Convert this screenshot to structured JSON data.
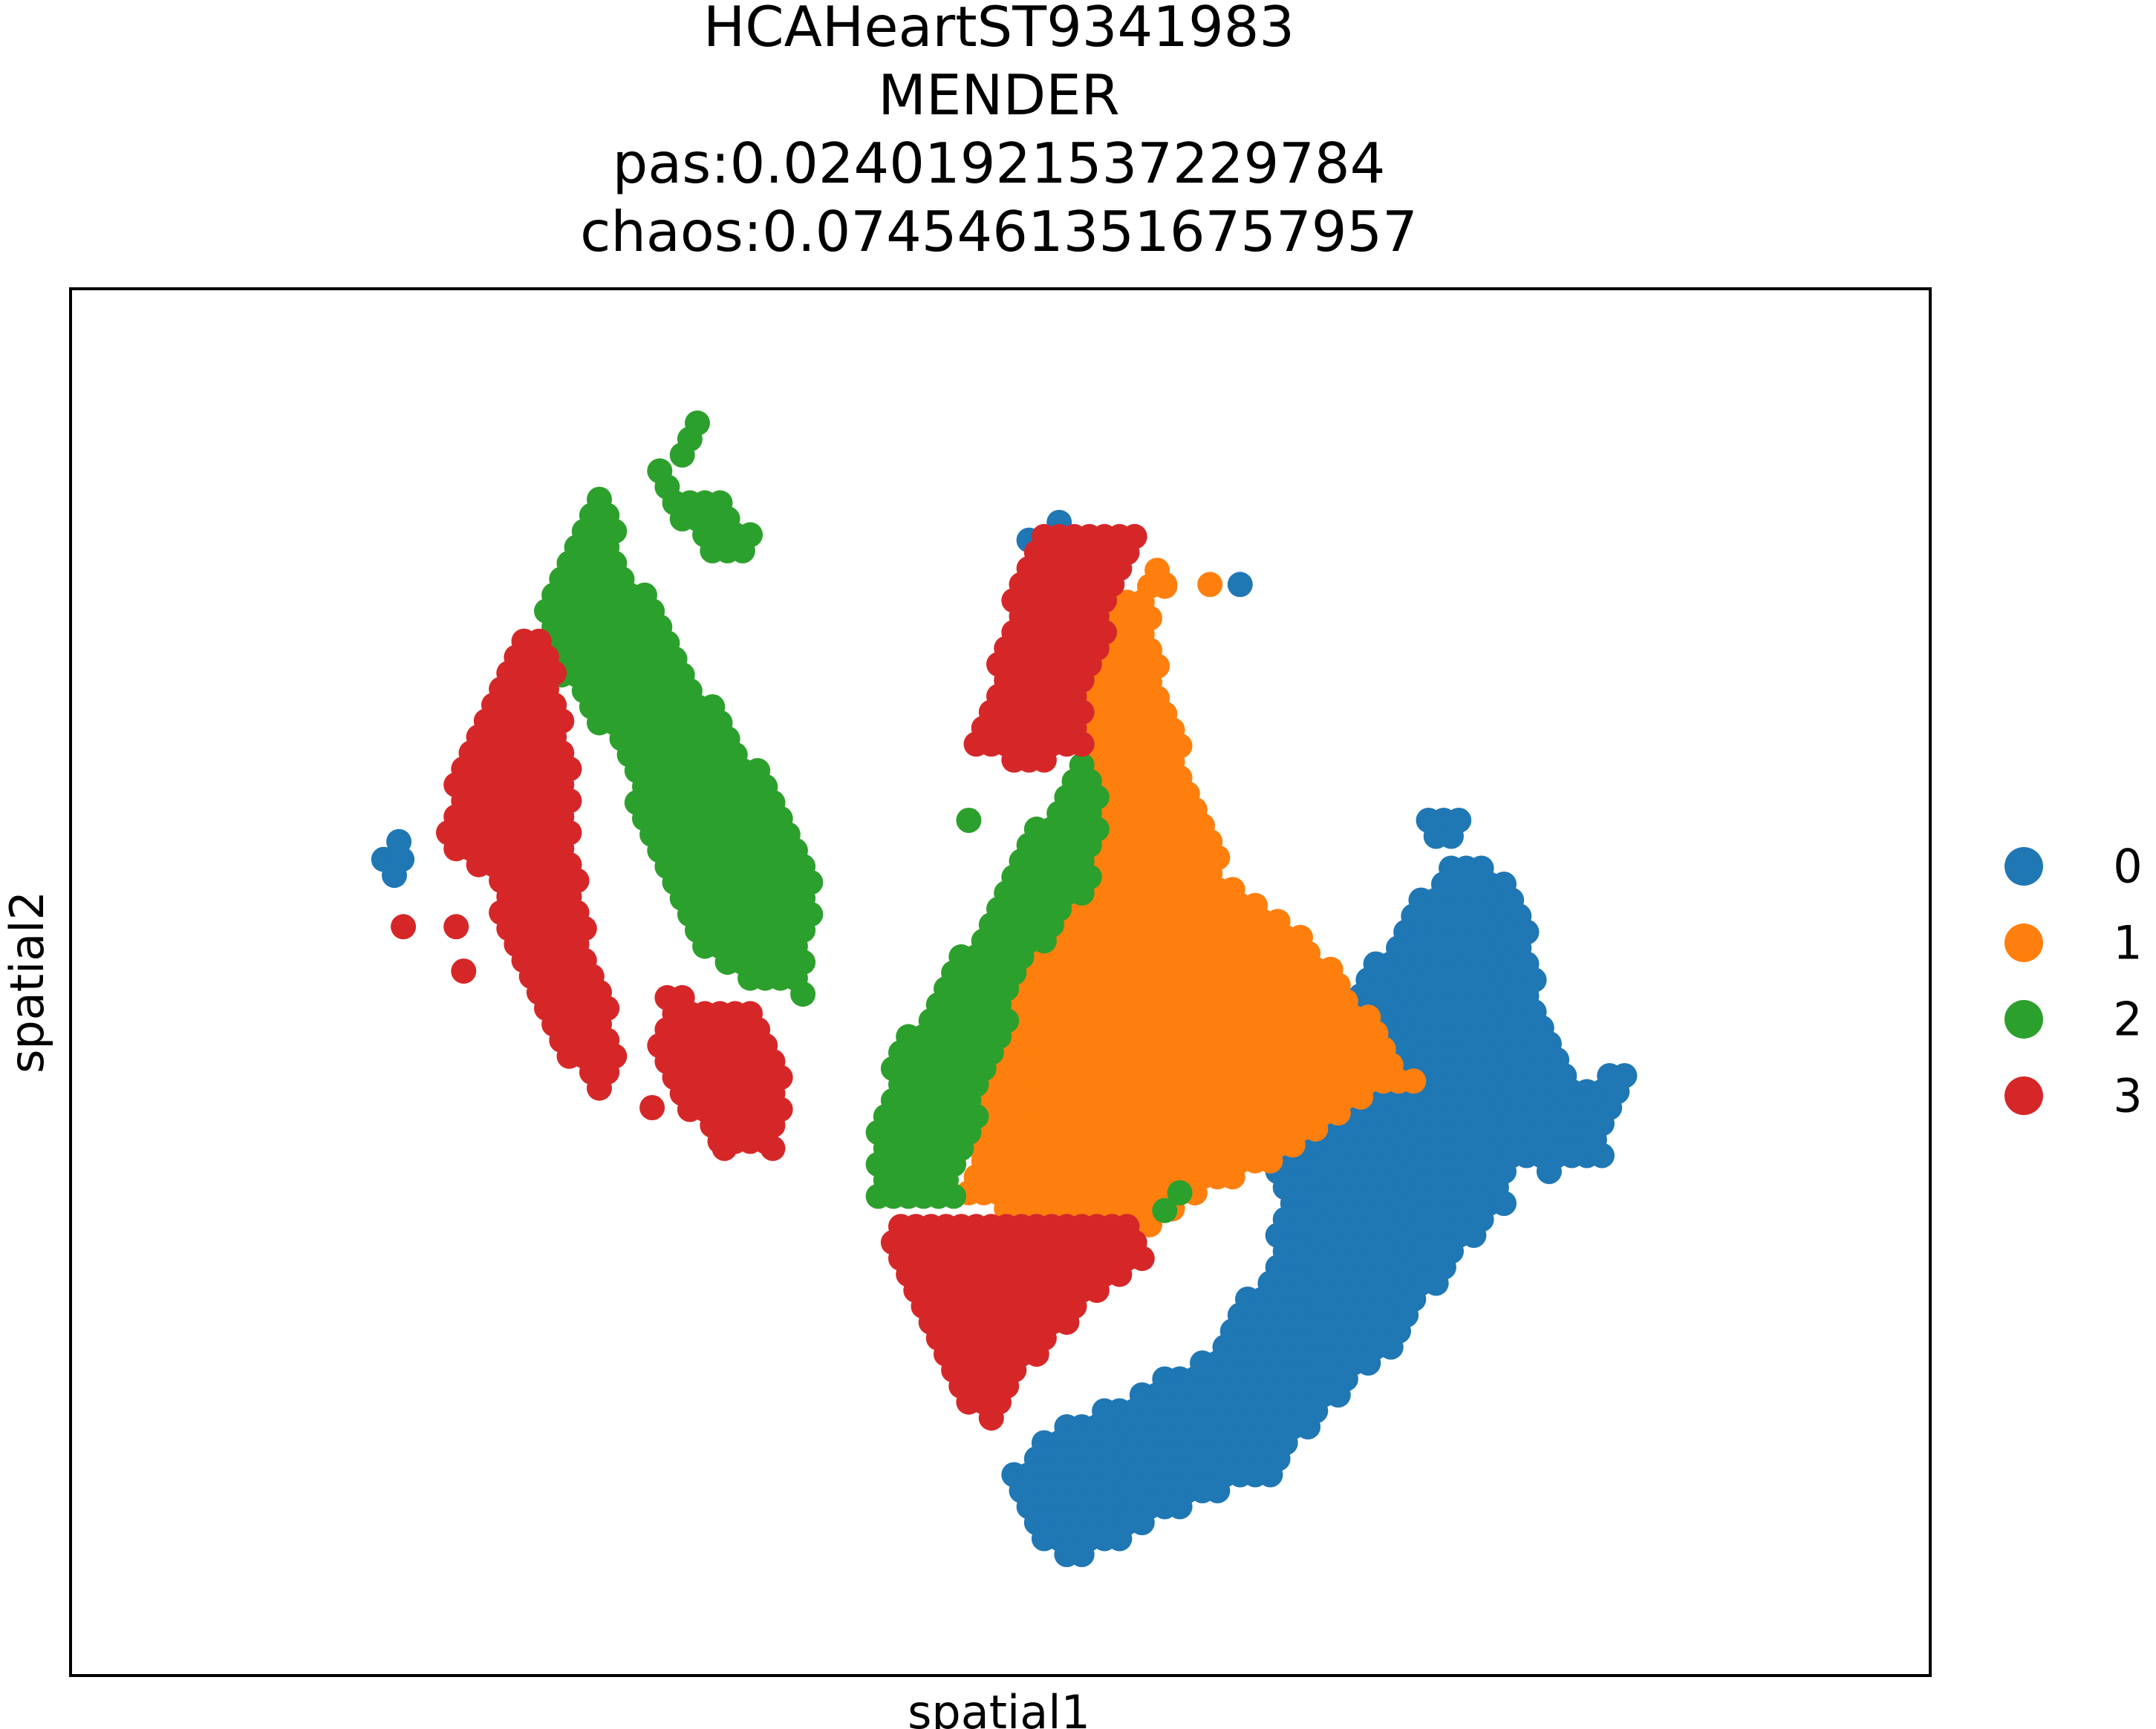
{
  "chart_data": {
    "type": "scatter",
    "title_lines": [
      "HCAHeartST9341983",
      "MENDER",
      "pas:0.02401921537229784",
      "chaos:0.07454613516757957"
    ],
    "xlabel": "spatial1",
    "ylabel": "spatial2",
    "ticks_shown": false,
    "grid": false,
    "legend_position": "right",
    "xlim": [
      0,
      1000
    ],
    "ylim": [
      0,
      720
    ],
    "y_inverted": true,
    "series": [
      {
        "name": "0",
        "color": "#1f77b4",
        "regions": [
          {
            "points": [
              [
                102,
                282
              ],
              [
                92,
                292
              ],
              [
                104,
                292
              ],
              [
                99,
                301
              ]
            ]
          },
          {
            "points": [
              [
                540,
                102
              ],
              [
                560,
                112
              ],
              [
                520,
                112
              ],
              [
                550,
                112
              ],
              [
                660,
                137
              ]
            ]
          },
          {
            "points": [
              [
                810,
                270
              ],
              [
                835,
                270
              ],
              [
                780,
                270
              ],
              [
                800,
                290
              ],
              [
                830,
                300
              ],
              [
                845,
                310
              ],
              [
                860,
                370
              ],
              [
                880,
                420
              ],
              [
                920,
                410
              ],
              [
                900,
                460
              ],
              [
                860,
                470
              ],
              [
                840,
                460
              ],
              [
                835,
                490
              ],
              [
                800,
                520
              ],
              [
                760,
                570
              ],
              [
                720,
                600
              ],
              [
                700,
                620
              ],
              [
                680,
                640
              ],
              [
                640,
                650
              ],
              [
                600,
                665
              ],
              [
                580,
                680
              ],
              [
                540,
                690
              ],
              [
                520,
                660
              ],
              [
                505,
                640
              ],
              [
                540,
                610
              ],
              [
                600,
                590
              ],
              [
                640,
                570
              ],
              [
                680,
                520
              ],
              [
                690,
                470
              ],
              [
                640,
                450
              ],
              [
                720,
                400
              ],
              [
                750,
                350
              ],
              [
                790,
                300
              ]
            ],
            "fill": true
          }
        ]
      },
      {
        "name": "1",
        "color": "#ff7f0e",
        "regions": [
          {
            "points": [
              [
                610,
                137
              ],
              [
                640,
                137
              ]
            ]
          },
          {
            "points": [
              [
                600,
                120
              ],
              [
                620,
                135
              ],
              [
                600,
                150
              ],
              [
                610,
                200
              ],
              [
                630,
                250
              ],
              [
                650,
                300
              ],
              [
                700,
                330
              ],
              [
                730,
                360
              ],
              [
                760,
                400
              ],
              [
                780,
                420
              ],
              [
                760,
                420
              ],
              [
                690,
                460
              ],
              [
                640,
                480
              ],
              [
                600,
                500
              ],
              [
                560,
                510
              ],
              [
                520,
                500
              ],
              [
                480,
                480
              ],
              [
                490,
                420
              ],
              [
                510,
                350
              ],
              [
                550,
                300
              ],
              [
                570,
                280
              ],
              [
                560,
                240
              ],
              [
                560,
                200
              ],
              [
                570,
                160
              ],
              [
                590,
                140
              ]
            ],
            "fill": true
          },
          {
            "points": [
              [
                520,
                311
              ]
            ]
          }
        ]
      },
      {
        "name": "2",
        "color": "#2ca02c",
        "regions": [
          {
            "points": [
              [
                315,
                10
              ],
              [
                300,
                50
              ],
              [
                280,
                80
              ],
              [
                320,
                90
              ],
              [
                340,
                110
              ],
              [
                320,
                130
              ],
              [
                300,
                110
              ],
              [
                270,
                80
              ]
            ],
            "fill": true
          },
          {
            "points": [
              [
                240,
                80
              ],
              [
                220,
                100
              ],
              [
                200,
                140
              ],
              [
                200,
                180
              ],
              [
                240,
                220
              ],
              [
                260,
                260
              ],
              [
                280,
                300
              ],
              [
                300,
                340
              ],
              [
                330,
                360
              ],
              [
                370,
                370
              ],
              [
                380,
                300
              ],
              [
                340,
                240
              ],
              [
                290,
                180
              ],
              [
                250,
                120
              ]
            ],
            "fill": true
          },
          {
            "points": [
              [
                480,
                270
              ]
            ]
          },
          {
            "points": [
              [
                560,
                230
              ],
              [
                540,
                250
              ],
              [
                510,
                300
              ],
              [
                480,
                340
              ],
              [
                440,
                390
              ],
              [
                420,
                430
              ],
              [
                420,
                490
              ],
              [
                470,
                490
              ],
              [
                490,
                420
              ],
              [
                520,
                350
              ],
              [
                560,
                310
              ],
              [
                570,
                250
              ]
            ],
            "fill": true
          },
          {
            "points": [
              [
                620,
                480
              ],
              [
                610,
                490
              ]
            ]
          }
        ]
      },
      {
        "name": "3",
        "color": "#d62728",
        "regions": [
          {
            "points": [
              [
                190,
                160
              ],
              [
                160,
                200
              ],
              [
                140,
                240
              ],
              [
                130,
                280
              ],
              [
                160,
                300
              ],
              [
                180,
                350
              ],
              [
                210,
                400
              ],
              [
                240,
                430
              ],
              [
                250,
                400
              ],
              [
                230,
                350
              ],
              [
                220,
                300
              ],
              [
                220,
                270
              ],
              [
                210,
                200
              ],
              [
                200,
                170
              ]
            ],
            "fill": true
          },
          {
            "points": [
              [
                105,
                330
              ],
              [
                140,
                330
              ],
              [
                145,
                355
              ]
            ]
          },
          {
            "points": [
              [
                280,
                370
              ],
              [
                270,
                400
              ],
              [
                280,
                420
              ],
              [
                300,
                440
              ],
              [
                320,
                460
              ],
              [
                350,
                450
              ],
              [
                360,
                420
              ],
              [
                340,
                380
              ],
              [
                300,
                370
              ]
            ],
            "fill": true
          },
          {
            "points": [
              [
                350,
                455
              ],
              [
                270,
                432
              ],
              [
                318,
                455
              ]
            ]
          },
          {
            "points": [
              [
                530,
                110
              ],
              [
                510,
                140
              ],
              [
                500,
                180
              ],
              [
                480,
                230
              ],
              [
                520,
                240
              ],
              [
                560,
                230
              ],
              [
                560,
                190
              ],
              [
                580,
                140
              ],
              [
                600,
                110
              ]
            ],
            "fill": true
          },
          {
            "points": [
              [
                420,
                500
              ],
              [
                440,
                540
              ],
              [
                460,
                570
              ],
              [
                480,
                600
              ],
              [
                500,
                610
              ],
              [
                520,
                580
              ],
              [
                560,
                540
              ],
              [
                600,
                520
              ],
              [
                600,
                500
              ],
              [
                540,
                490
              ]
            ],
            "fill": true
          }
        ]
      }
    ]
  }
}
